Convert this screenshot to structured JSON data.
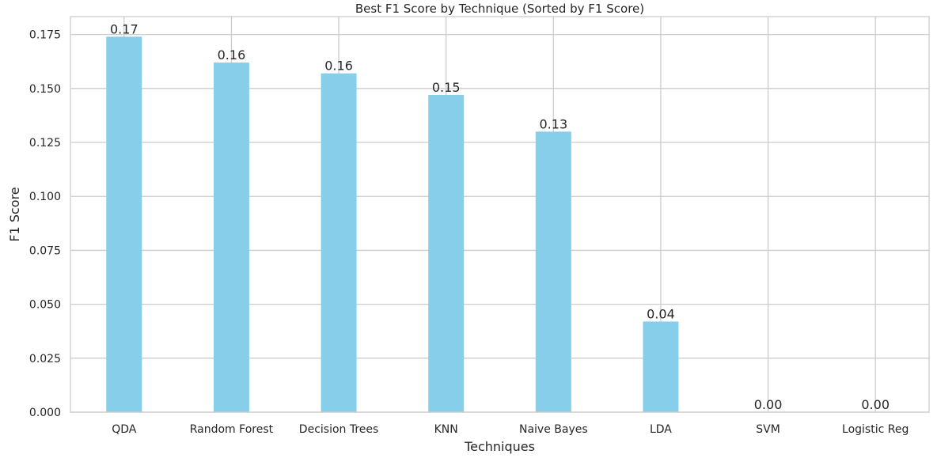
{
  "chart_data": {
    "type": "bar",
    "title": "Best F1 Score by Technique (Sorted by F1 Score)",
    "xlabel": "Techniques",
    "ylabel": "F1 Score",
    "categories": [
      "QDA",
      "Random Forest",
      "Decision Trees",
      "KNN",
      "Naive Bayes",
      "LDA",
      "SVM",
      "Logistic Reg"
    ],
    "values": [
      0.174,
      0.162,
      0.157,
      0.147,
      0.13,
      0.042,
      0.0,
      0.0
    ],
    "data_labels": [
      "0.17",
      "0.16",
      "0.16",
      "0.15",
      "0.13",
      "0.04",
      "0.00",
      "0.00"
    ],
    "ylim": [
      0,
      0.1833
    ],
    "yticks": [
      0.0,
      0.025,
      0.05,
      0.075,
      0.1,
      0.125,
      0.15,
      0.175
    ],
    "ytick_labels": [
      "0.000",
      "0.025",
      "0.050",
      "0.075",
      "0.100",
      "0.125",
      "0.150",
      "0.175"
    ],
    "grid": true,
    "bar_color": "#87ceeb"
  }
}
